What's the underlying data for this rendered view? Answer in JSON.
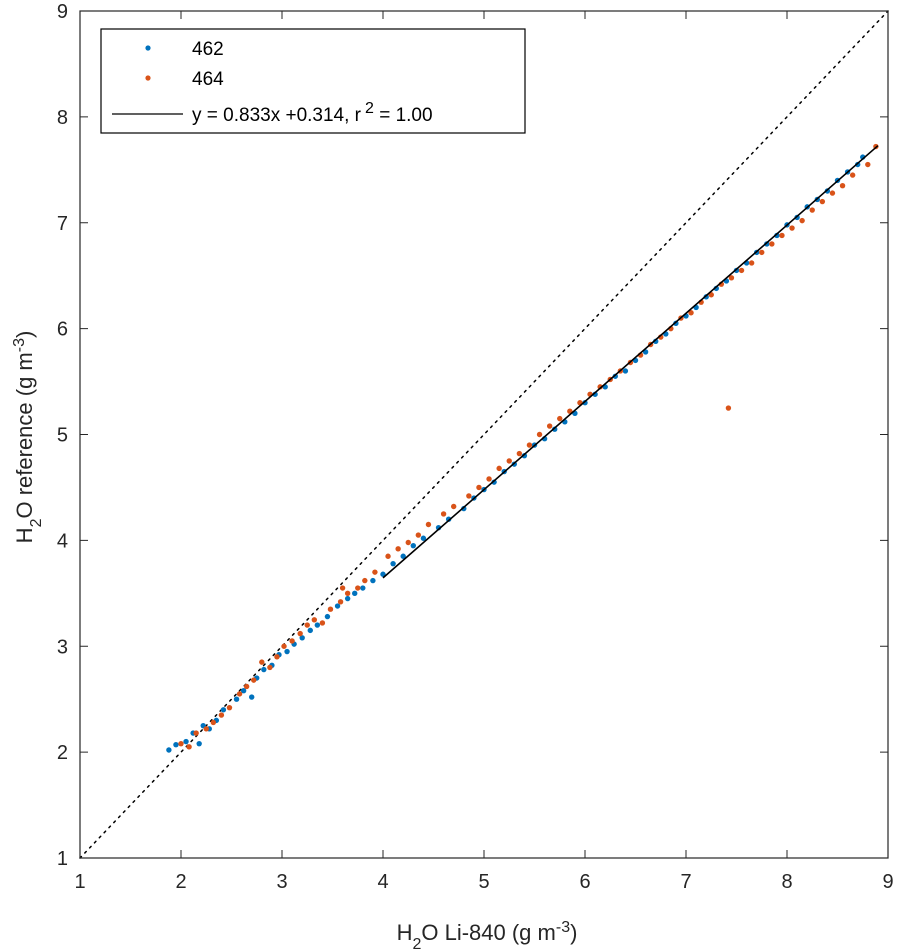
{
  "chart_data": {
    "type": "scatter",
    "xlabel": {
      "main": "H",
      "sub": "2",
      "rest": "O Li-840 (g m",
      "sup": "-3",
      "close": ")"
    },
    "ylabel": {
      "main": "H",
      "sub": "2",
      "rest": "O reference (g m",
      "sup": "-3",
      "close": ")"
    },
    "xlim": [
      1,
      9
    ],
    "ylim": [
      1,
      9
    ],
    "xticks": [
      "1",
      "2",
      "3",
      "4",
      "5",
      "6",
      "7",
      "8",
      "9"
    ],
    "yticks": [
      "1",
      "2",
      "3",
      "4",
      "5",
      "6",
      "7",
      "8",
      "9"
    ],
    "grid": false,
    "legend": {
      "placement": "top-left",
      "entries": [
        {
          "label": "462"
        },
        {
          "label": "464"
        },
        {
          "main": "y = 0.833x +0.314, r",
          "sup": "2",
          "rest": " = 1.00"
        }
      ]
    },
    "fit": {
      "slope": 0.833,
      "intercept": 0.314,
      "x": [
        4.0,
        8.9
      ],
      "color": "#000000"
    },
    "identity_line": {
      "x": [
        1,
        9
      ],
      "y": [
        1,
        9
      ],
      "style": "dotted",
      "color": "#000000"
    },
    "series": [
      {
        "name": "462",
        "color": "#0072BD",
        "x": [
          1.88,
          1.95,
          2.05,
          2.12,
          2.18,
          2.22,
          2.28,
          2.35,
          2.42,
          2.55,
          2.62,
          2.7,
          2.75,
          2.82,
          2.9,
          2.97,
          3.05,
          3.12,
          3.2,
          3.28,
          3.35,
          3.45,
          3.55,
          3.65,
          3.72,
          3.8,
          3.9,
          4.0,
          4.1,
          4.2,
          4.3,
          4.4,
          4.55,
          4.65,
          4.8,
          4.9,
          5.0,
          5.1,
          5.2,
          5.3,
          5.4,
          5.5,
          5.6,
          5.7,
          5.8,
          5.9,
          6.0,
          6.1,
          6.2,
          6.3,
          6.4,
          6.5,
          6.6,
          6.7,
          6.8,
          6.9,
          7.0,
          7.1,
          7.2,
          7.3,
          7.4,
          7.5,
          7.6,
          7.7,
          7.8,
          7.9,
          8.0,
          8.1,
          8.2,
          8.3,
          8.4,
          8.5,
          8.6,
          8.7,
          8.75
        ],
        "y": [
          2.02,
          2.07,
          2.1,
          2.18,
          2.08,
          2.25,
          2.22,
          2.3,
          2.4,
          2.5,
          2.58,
          2.52,
          2.7,
          2.78,
          2.82,
          2.92,
          2.95,
          3.02,
          3.08,
          3.15,
          3.2,
          3.28,
          3.38,
          3.45,
          3.5,
          3.55,
          3.62,
          3.68,
          3.78,
          3.85,
          3.95,
          4.02,
          4.12,
          4.2,
          4.3,
          4.4,
          4.48,
          4.55,
          4.65,
          4.72,
          4.8,
          4.9,
          4.96,
          5.05,
          5.12,
          5.2,
          5.3,
          5.38,
          5.45,
          5.55,
          5.6,
          5.7,
          5.78,
          5.88,
          5.95,
          6.05,
          6.12,
          6.2,
          6.3,
          6.38,
          6.45,
          6.55,
          6.62,
          6.72,
          6.8,
          6.88,
          6.98,
          7.05,
          7.15,
          7.22,
          7.3,
          7.4,
          7.48,
          7.55,
          7.62
        ]
      },
      {
        "name": "464",
        "color": "#D95319",
        "x": [
          2.0,
          2.08,
          2.15,
          2.25,
          2.32,
          2.4,
          2.48,
          2.58,
          2.65,
          2.72,
          2.8,
          2.88,
          2.95,
          3.02,
          3.1,
          3.18,
          3.25,
          3.32,
          3.4,
          3.48,
          3.58,
          3.65,
          3.75,
          3.82,
          3.92,
          4.05,
          4.15,
          4.25,
          4.35,
          4.45,
          4.6,
          4.7,
          4.85,
          4.95,
          5.05,
          5.15,
          5.25,
          5.35,
          5.45,
          5.55,
          5.65,
          5.75,
          5.85,
          5.95,
          6.05,
          6.15,
          6.25,
          6.35,
          6.45,
          6.55,
          6.65,
          6.75,
          6.85,
          6.95,
          7.05,
          7.15,
          7.25,
          7.35,
          7.45,
          7.55,
          7.65,
          7.75,
          7.85,
          7.95,
          8.05,
          8.15,
          8.25,
          8.35,
          8.45,
          8.55,
          8.65,
          8.8,
          8.88,
          7.42,
          3.6
        ],
        "y": [
          2.08,
          2.05,
          2.18,
          2.22,
          2.28,
          2.35,
          2.42,
          2.55,
          2.62,
          2.68,
          2.85,
          2.8,
          2.9,
          3.0,
          3.05,
          3.12,
          3.2,
          3.25,
          3.22,
          3.35,
          3.42,
          3.5,
          3.55,
          3.62,
          3.7,
          3.85,
          3.92,
          3.98,
          4.05,
          4.15,
          4.25,
          4.32,
          4.42,
          4.5,
          4.58,
          4.68,
          4.75,
          4.82,
          4.9,
          5.0,
          5.08,
          5.15,
          5.22,
          5.3,
          5.38,
          5.45,
          5.52,
          5.6,
          5.68,
          5.75,
          5.85,
          5.92,
          6.0,
          6.1,
          6.15,
          6.25,
          6.32,
          6.42,
          6.48,
          6.55,
          6.62,
          6.72,
          6.8,
          6.88,
          6.95,
          7.02,
          7.12,
          7.2,
          7.28,
          7.35,
          7.45,
          7.55,
          7.72,
          5.25,
          3.55
        ]
      }
    ]
  }
}
